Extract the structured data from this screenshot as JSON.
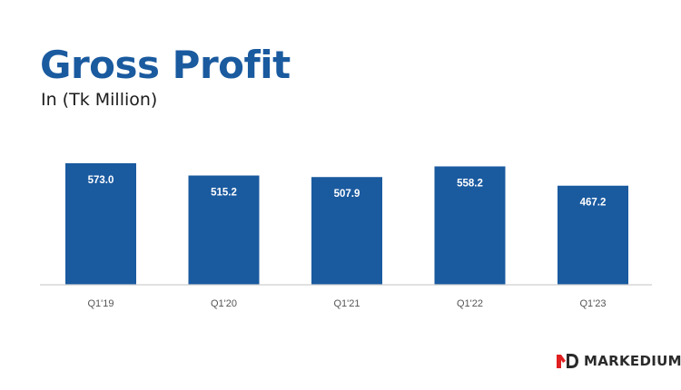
{
  "header": {
    "title": "Gross Profit",
    "subtitle": "In (Tk Million)"
  },
  "brand": {
    "name": "MARKEDIUM",
    "accent_color": "#e02020"
  },
  "colors": {
    "bar": "#1a5a9f",
    "title": "#1a5a9f",
    "bar_label": "#ffffff",
    "axis": "#cfcfcf",
    "tick_label": "#555555"
  },
  "chart_data": {
    "type": "bar",
    "title": "Gross Profit",
    "subtitle": "In (Tk Million)",
    "categories": [
      "Q1'19",
      "Q1'20",
      "Q1'21",
      "Q1'22",
      "Q1'23"
    ],
    "values": [
      573.0,
      515.2,
      507.9,
      558.2,
      467.2
    ],
    "value_labels": [
      "573.0",
      "515.2",
      "507.9",
      "558.2",
      "467.2"
    ],
    "xlabel": "",
    "ylabel": "",
    "ylim": [
      0,
      573.0
    ],
    "grid": false,
    "legend": "none"
  }
}
